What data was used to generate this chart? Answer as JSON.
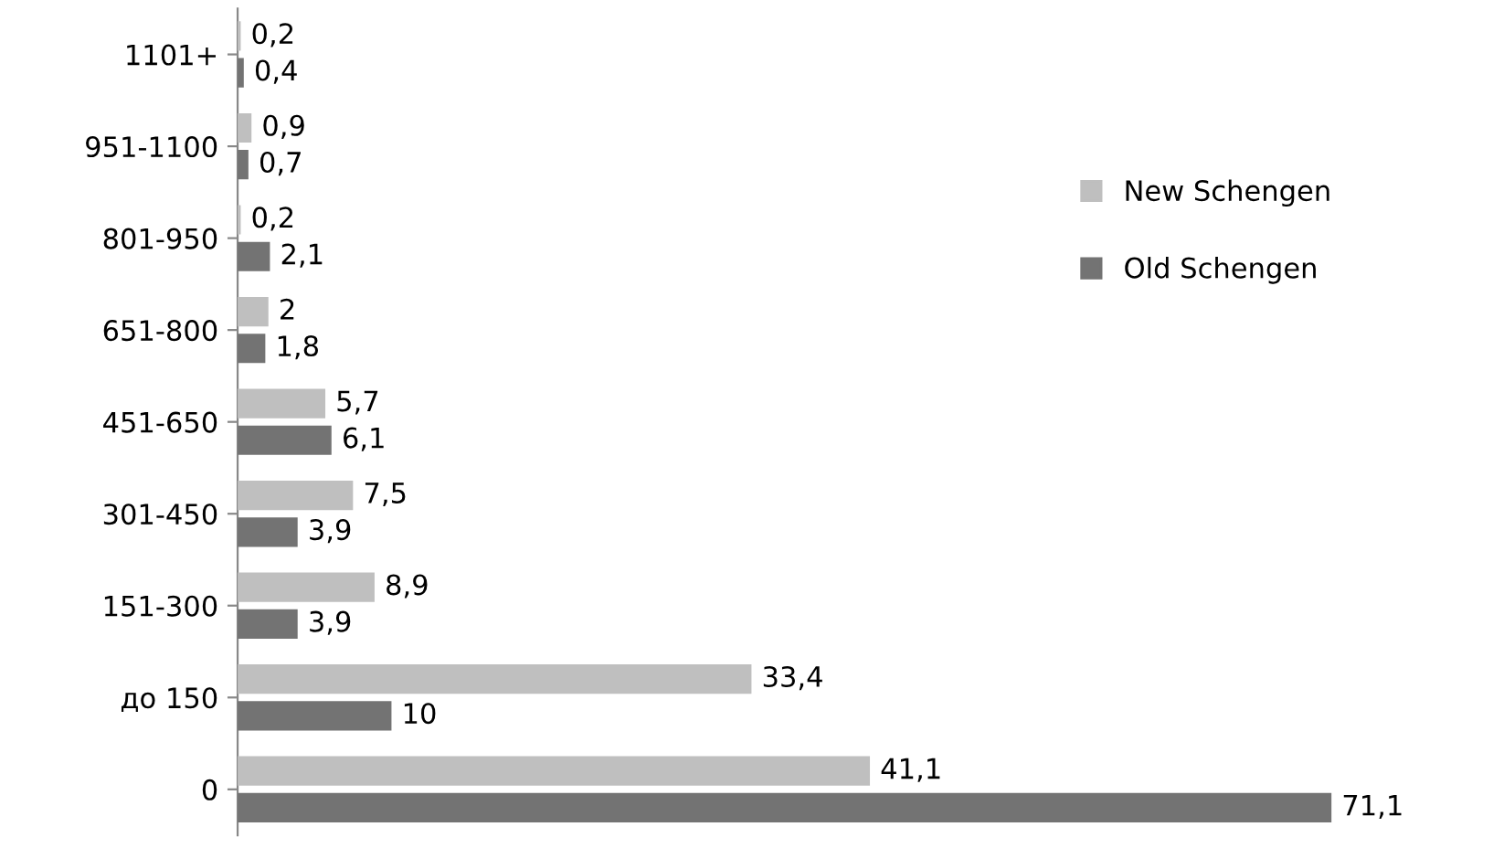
{
  "chart_data": {
    "type": "bar",
    "orientation": "horizontal",
    "categories": [
      "1101+",
      "951-1100",
      "801-950",
      "651-800",
      "451-650",
      "301-450",
      "151-300",
      "до 150",
      "0"
    ],
    "series": [
      {
        "name": "New Schengen",
        "color": "#bfbfbf",
        "values": [
          0.2,
          0.9,
          0.2,
          2,
          5.7,
          7.5,
          8.9,
          33.4,
          41.1
        ],
        "value_labels": [
          "0,2",
          "0,9",
          "0,2",
          "2",
          "5,7",
          "7,5",
          "8,9",
          "33,4",
          "41,1"
        ]
      },
      {
        "name": "Old Schengen",
        "color": "#737373",
        "values": [
          0.4,
          0.7,
          2.1,
          1.8,
          6.1,
          3.9,
          3.9,
          10,
          71.1
        ],
        "value_labels": [
          "0,4",
          "0,7",
          "2,1",
          "1,8",
          "6,1",
          "3,9",
          "3,9",
          "10",
          "71,1"
        ]
      }
    ],
    "legend": "right",
    "grid": false
  }
}
